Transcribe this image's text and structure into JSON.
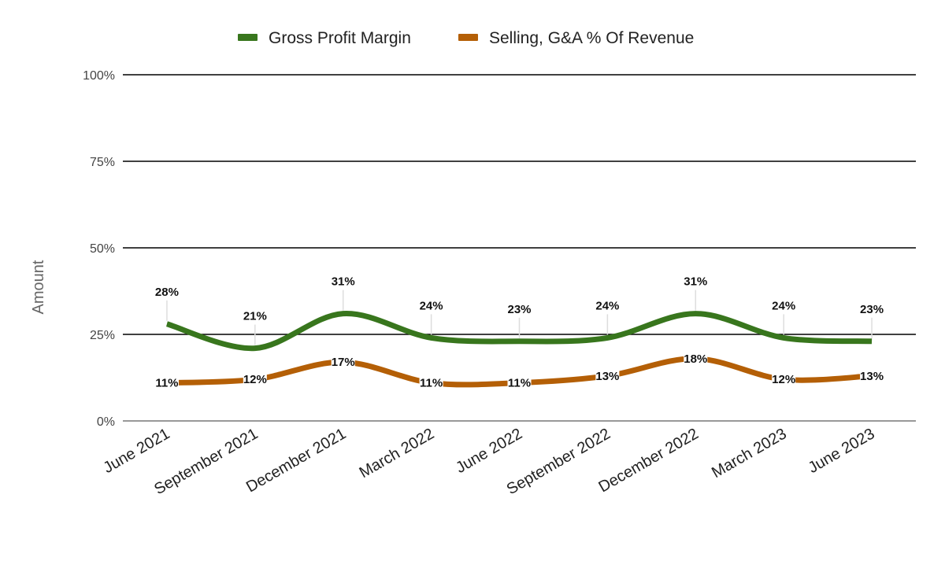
{
  "chart_data": {
    "type": "line",
    "title": "",
    "xlabel": "",
    "ylabel": "Amount",
    "ylim": [
      0,
      100
    ],
    "y_ticks": [
      "0%",
      "25%",
      "50%",
      "75%",
      "100%"
    ],
    "y_tick_values": [
      0,
      25,
      50,
      75,
      100
    ],
    "categories": [
      "June 2021",
      "September 2021",
      "December 2021",
      "March 2022",
      "June 2022",
      "September 2022",
      "December 2022",
      "March 2023",
      "June 2023"
    ],
    "grid": true,
    "smooth": true,
    "legend_position": "top",
    "series": [
      {
        "name": "Gross Profit Margin",
        "color": "#38761d",
        "values": [
          28,
          21,
          31,
          24,
          23,
          24,
          31,
          24,
          23
        ],
        "labels": [
          "28%",
          "21%",
          "31%",
          "24%",
          "23%",
          "24%",
          "31%",
          "24%",
          "23%"
        ]
      },
      {
        "name": "Selling, G&A % Of Revenue",
        "color": "#b45f06",
        "values": [
          11,
          12,
          17,
          11,
          11,
          13,
          18,
          12,
          13
        ],
        "labels": [
          "11%",
          "12%",
          "17%",
          "11%",
          "11%",
          "13%",
          "18%",
          "12%",
          "13%"
        ]
      }
    ]
  }
}
